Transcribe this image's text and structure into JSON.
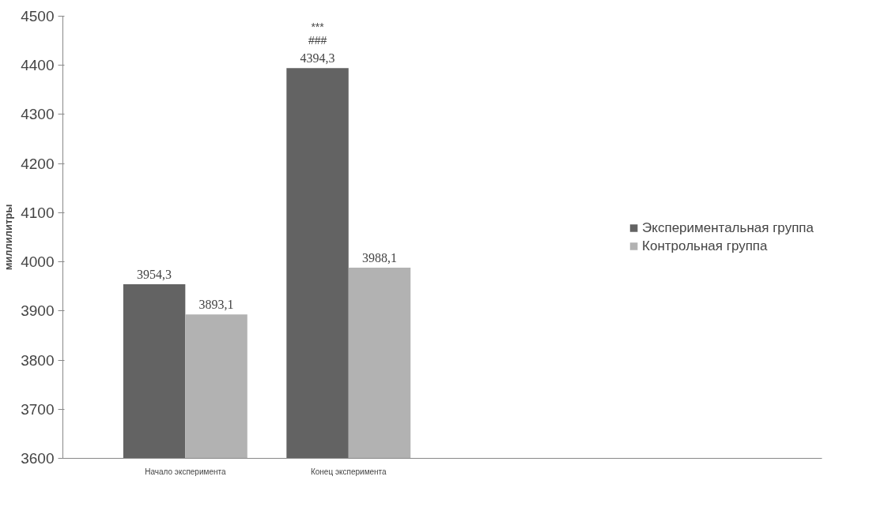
{
  "chart_data": {
    "type": "bar",
    "ylabel": "миллилитры",
    "categories": [
      "Начало эксперимента",
      "Конец эксперимента"
    ],
    "series": [
      {
        "name": "Экспериментальная группа",
        "color": "#636363",
        "values": [
          3954.3,
          4394.3
        ],
        "value_labels": [
          "3954,3",
          "4394,3"
        ]
      },
      {
        "name": "Контрольная группа",
        "color": "#b2b2b2",
        "values": [
          3893.1,
          3988.1
        ],
        "value_labels": [
          "3893,1",
          "3988,1"
        ]
      }
    ],
    "ylim": [
      3600,
      4500
    ],
    "yticks": [
      3600,
      3700,
      3800,
      3900,
      4000,
      4100,
      4200,
      4300,
      4400,
      4500
    ],
    "grid": false,
    "legend": "right",
    "annotations": [
      "###",
      "***"
    ]
  }
}
